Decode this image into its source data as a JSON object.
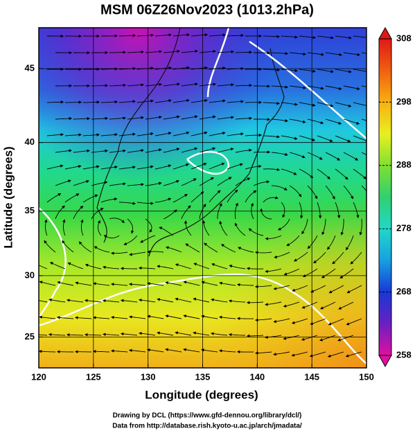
{
  "map": {
    "title": "MSM 06Z26Nov2023 (1013.2hPa)",
    "xlabel": "Longitude (degrees)",
    "ylabel": "Latitude  (degrees)",
    "projection": "mercator",
    "xlim": [
      120,
      150
    ],
    "ylim": [
      22.4,
      47.6
    ],
    "xticks": [
      120,
      125,
      130,
      135,
      140,
      145,
      150
    ],
    "yticks": [
      25,
      30,
      35,
      40,
      45
    ],
    "grid": true,
    "colorbar": {
      "lim": [
        258,
        308
      ],
      "ticks": [
        258,
        268,
        278,
        288,
        298,
        308
      ],
      "colors": [
        "#e010a0",
        "#6a20c0",
        "#1838d8",
        "#18a0e0",
        "#20d8c8",
        "#30d070",
        "#80e030",
        "#e8f020",
        "#f8b010",
        "#f06010",
        "#e01818"
      ]
    },
    "footer": [
      "Drawing by DCL (https://www.gfd-dennou.org/library/dcl/)",
      "Data from http://database.rish.kyoto-u.ac.jp/arch/jmadata/"
    ]
  }
}
